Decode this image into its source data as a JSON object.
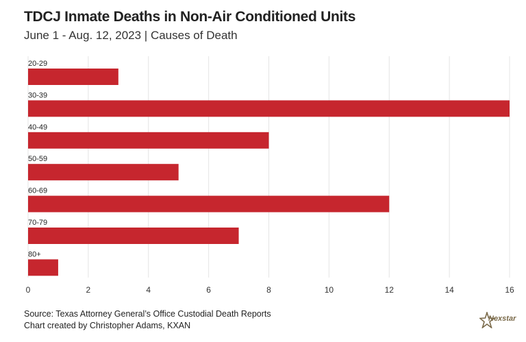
{
  "header": {
    "title": "TDCJ Inmate Deaths in Non-Air Conditioned Units",
    "subtitle": "June 1 - Aug. 12, 2023 | Causes of Death"
  },
  "chart_data": {
    "type": "bar",
    "orientation": "horizontal",
    "categories": [
      "20-29",
      "30-39",
      "40-49",
      "50-59",
      "60-69",
      "70-79",
      "80+"
    ],
    "values": [
      3,
      16,
      8,
      5,
      12,
      7,
      1
    ],
    "xlim": [
      0,
      16
    ],
    "xticks": [
      0,
      2,
      4,
      6,
      8,
      10,
      12,
      14,
      16
    ],
    "grid": true,
    "bar_color": "#c6262e"
  },
  "footer": {
    "source": "Source: Texas Attorney General’s Office Custodial Death Reports",
    "credit": "Chart created by Christopher Adams, KXAN"
  },
  "logo": {
    "text": "Nexstar",
    "icon": "nexstar-star-icon"
  }
}
